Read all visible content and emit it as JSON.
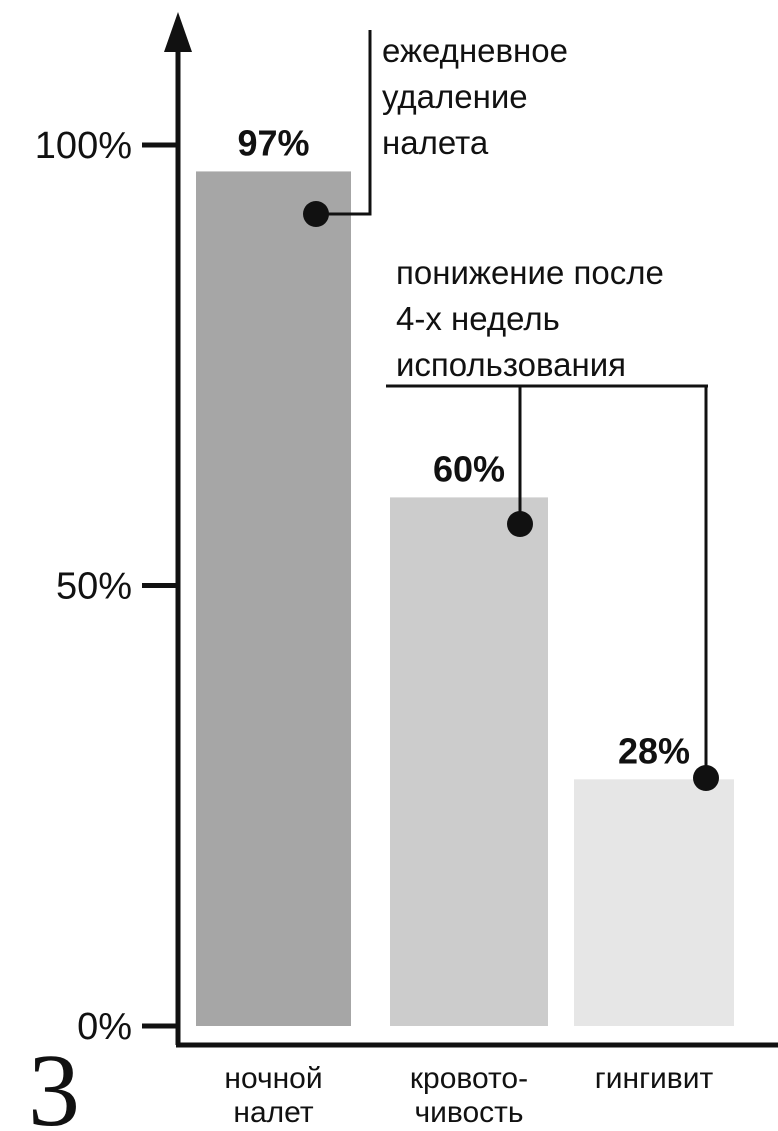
{
  "figure_number": "3",
  "chart_data": {
    "type": "bar",
    "categories": [
      {
        "lines": [
          "ночной",
          "налет"
        ]
      },
      {
        "lines": [
          "кровото-",
          "чивость"
        ]
      },
      {
        "lines": [
          "гингивит"
        ]
      }
    ],
    "values": [
      97,
      60,
      28
    ],
    "value_labels": [
      "97%",
      "60%",
      "28%"
    ],
    "bar_colors": [
      "#a6a6a6",
      "#cccccc",
      "#e6e6e6"
    ],
    "ylim": [
      0,
      100
    ],
    "yticks": [
      {
        "value": 0,
        "label": "0%"
      },
      {
        "value": 50,
        "label": "50%"
      },
      {
        "value": 100,
        "label": "100%"
      }
    ],
    "grid": false,
    "annotations": [
      {
        "lines": [
          "ежедневное",
          "удаление",
          "налета"
        ],
        "targets": [
          0
        ]
      },
      {
        "lines": [
          "понижение после",
          "4-х недель",
          "использования"
        ],
        "targets": [
          1,
          2
        ]
      }
    ]
  }
}
